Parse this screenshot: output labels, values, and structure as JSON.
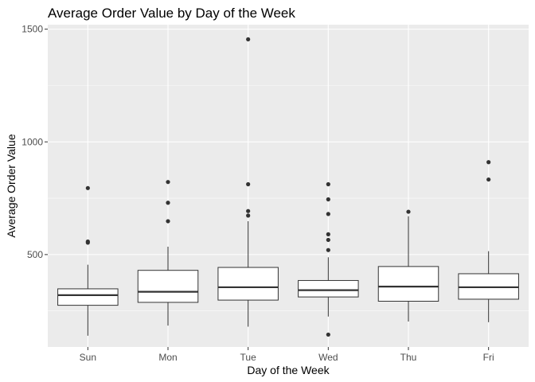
{
  "chart_data": {
    "type": "boxplot",
    "title": "Average Order Value by Day of the Week",
    "xlabel": "Day of the Week",
    "ylabel": "Average Order Value",
    "ylim": [
      90,
      1520
    ],
    "yticks": [
      500,
      1000,
      1500
    ],
    "grid": true,
    "legend": "none",
    "colors": {
      "panel": "#ebebeb",
      "grid_major": "#ffffff",
      "box_fill": "#ffffff",
      "box_line": "#333333",
      "point": "#333333",
      "tick": "#333333"
    },
    "categories": [
      "Sun",
      "Mon",
      "Tue",
      "Wed",
      "Thu",
      "Fri"
    ],
    "boxes": [
      {
        "category": "Sun",
        "whisker_low": 140,
        "q1": 275,
        "median": 320,
        "q3": 348,
        "whisker_high": 455,
        "outliers": [
          553,
          558,
          795
        ]
      },
      {
        "category": "Mon",
        "whisker_low": 185,
        "q1": 288,
        "median": 335,
        "q3": 430,
        "whisker_high": 535,
        "outliers": [
          648,
          730,
          822
        ]
      },
      {
        "category": "Tue",
        "whisker_low": 180,
        "q1": 298,
        "median": 355,
        "q3": 443,
        "whisker_high": 648,
        "outliers": [
          673,
          693,
          812,
          1455
        ]
      },
      {
        "category": "Wed",
        "whisker_low": 225,
        "q1": 312,
        "median": 342,
        "q3": 385,
        "whisker_high": 488,
        "outliers": [
          145,
          520,
          565,
          590,
          680,
          745,
          812
        ]
      },
      {
        "category": "Thu",
        "whisker_low": 203,
        "q1": 293,
        "median": 358,
        "q3": 447,
        "whisker_high": 670,
        "outliers": [
          690
        ]
      },
      {
        "category": "Fri",
        "whisker_low": 200,
        "q1": 302,
        "median": 355,
        "q3": 415,
        "whisker_high": 515,
        "outliers": [
          833,
          910
        ]
      }
    ]
  }
}
